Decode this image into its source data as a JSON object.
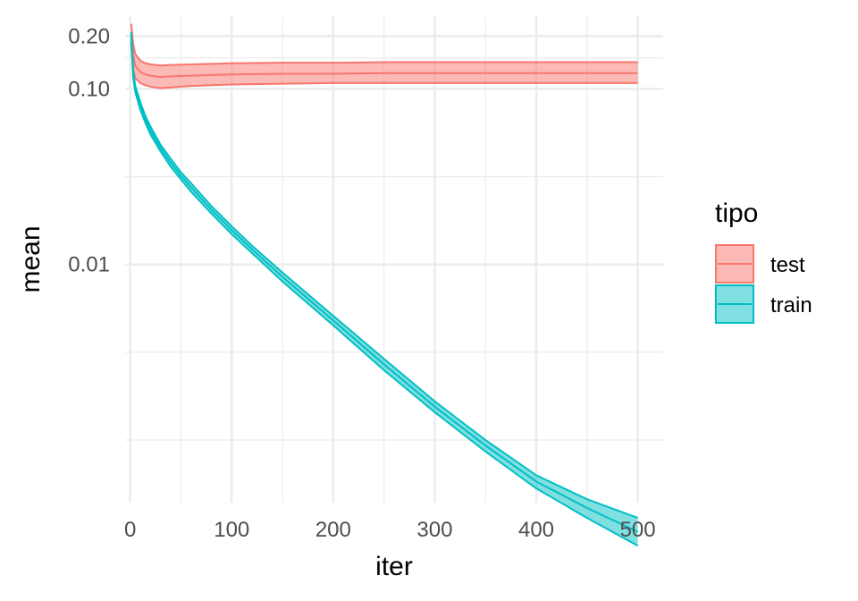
{
  "chart_data": {
    "type": "line",
    "xlabel": "iter",
    "ylabel": "mean",
    "x_scale": "linear",
    "y_scale": "log10",
    "xlim": [
      -5,
      525
    ],
    "ylim": [
      0.00044,
      0.26
    ],
    "x_ticks": [
      0,
      100,
      200,
      300,
      400,
      500
    ],
    "x_tick_labels": [
      "0",
      "100",
      "200",
      "300",
      "400",
      "500"
    ],
    "x_minor_ticks": [
      50,
      150,
      250,
      350,
      450
    ],
    "y_ticks": [
      0.01,
      0.1,
      0.2
    ],
    "y_tick_labels": [
      "0.01",
      "0.10",
      "0.20"
    ],
    "y_minor_ticks": [
      0.15,
      0.03162,
      0.003162,
      0.001
    ],
    "grid": true,
    "legend": {
      "title": "tipo",
      "position": "right",
      "entries": [
        "test",
        "train"
      ]
    },
    "series": [
      {
        "name": "test",
        "color": "#F8766D",
        "fill": "#F8766D",
        "x": [
          1,
          3,
          5,
          10,
          15,
          20,
          30,
          40,
          60,
          80,
          100,
          150,
          200,
          250,
          300,
          350,
          400,
          450,
          500
        ],
        "mean": [
          0.2,
          0.155,
          0.135,
          0.125,
          0.121,
          0.119,
          0.117,
          0.118,
          0.119,
          0.12,
          0.121,
          0.122,
          0.122,
          0.123,
          0.123,
          0.123,
          0.123,
          0.123,
          0.123
        ],
        "lower": [
          0.18,
          0.13,
          0.115,
          0.108,
          0.105,
          0.103,
          0.101,
          0.102,
          0.104,
          0.105,
          0.106,
          0.107,
          0.108,
          0.108,
          0.108,
          0.108,
          0.108,
          0.108,
          0.108
        ],
        "upper": [
          0.235,
          0.18,
          0.158,
          0.145,
          0.14,
          0.138,
          0.136,
          0.137,
          0.138,
          0.139,
          0.14,
          0.141,
          0.141,
          0.142,
          0.142,
          0.142,
          0.142,
          0.142,
          0.142
        ]
      },
      {
        "name": "train",
        "color": "#00BFC4",
        "fill": "#00BFC4",
        "x": [
          1,
          3,
          5,
          10,
          15,
          20,
          30,
          40,
          50,
          60,
          80,
          100,
          120,
          150,
          200,
          250,
          300,
          350,
          400,
          450,
          500
        ],
        "mean": [
          0.2,
          0.12,
          0.1,
          0.08,
          0.067,
          0.058,
          0.046,
          0.038,
          0.032,
          0.0275,
          0.0205,
          0.0157,
          0.0122,
          0.0085,
          0.0048,
          0.0027,
          0.00155,
          0.00093,
          0.00058,
          0.00041,
          0.0003
        ],
        "lower": [
          0.19,
          0.115,
          0.096,
          0.076,
          0.064,
          0.055,
          0.044,
          0.036,
          0.0305,
          0.026,
          0.0195,
          0.0149,
          0.0116,
          0.008,
          0.0045,
          0.0025,
          0.00144,
          0.00086,
          0.00053,
          0.00036,
          0.00025
        ],
        "upper": [
          0.21,
          0.125,
          0.104,
          0.084,
          0.07,
          0.061,
          0.048,
          0.04,
          0.0335,
          0.029,
          0.0215,
          0.0165,
          0.0128,
          0.009,
          0.0051,
          0.0029,
          0.00166,
          0.001,
          0.00063,
          0.00046,
          0.00036
        ]
      }
    ]
  }
}
